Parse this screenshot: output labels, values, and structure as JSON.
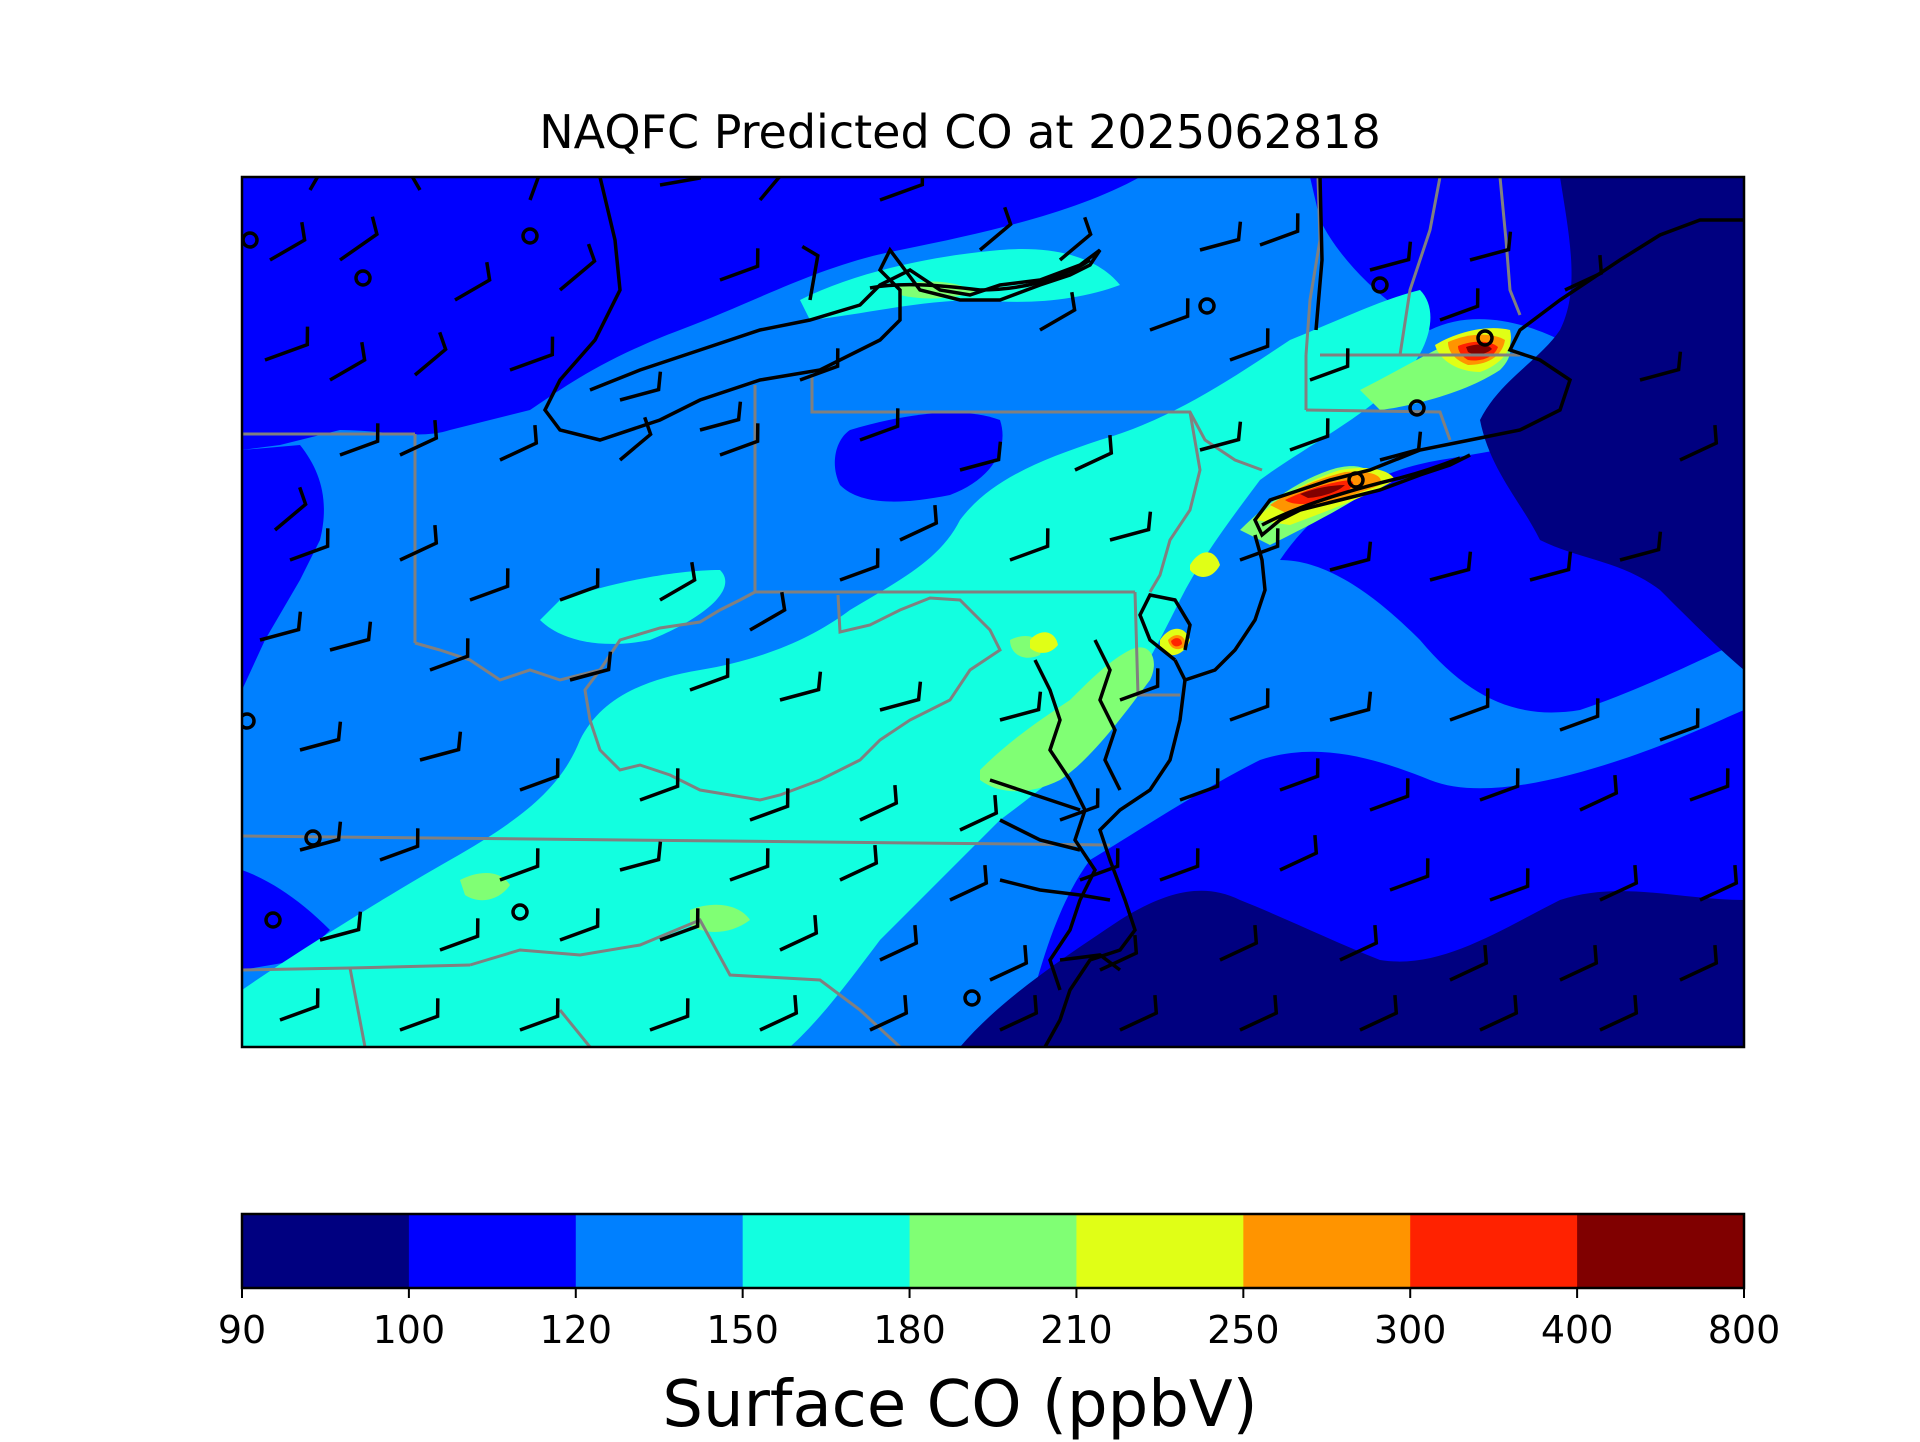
{
  "title": "NAQFC Predicted CO at 2025062818",
  "colorbar": {
    "label": "Surface CO (ppbV)",
    "boundaries": [
      "90",
      "100",
      "120",
      "150",
      "180",
      "210",
      "250",
      "300",
      "400",
      "800"
    ],
    "colors": [
      "#000080",
      "#0000ff",
      "#0080ff",
      "#12ffe0",
      "#80ff74",
      "#e0ff16",
      "#ff9400",
      "#ff2200",
      "#800000"
    ]
  },
  "map": {
    "background_level_color": "#0080ff",
    "ocean_low_color": "#000080",
    "coast_color": "#000000",
    "state_border_color": "#808080",
    "wind_barb_color": "#000000",
    "plume_colors": {
      "c150": "#12ffe0",
      "c180": "#80ff74",
      "c210": "#e0ff16",
      "c250": "#ff9400",
      "c300": "#ff2200",
      "c400": "#800000",
      "c100": "#0000ff"
    }
  }
}
